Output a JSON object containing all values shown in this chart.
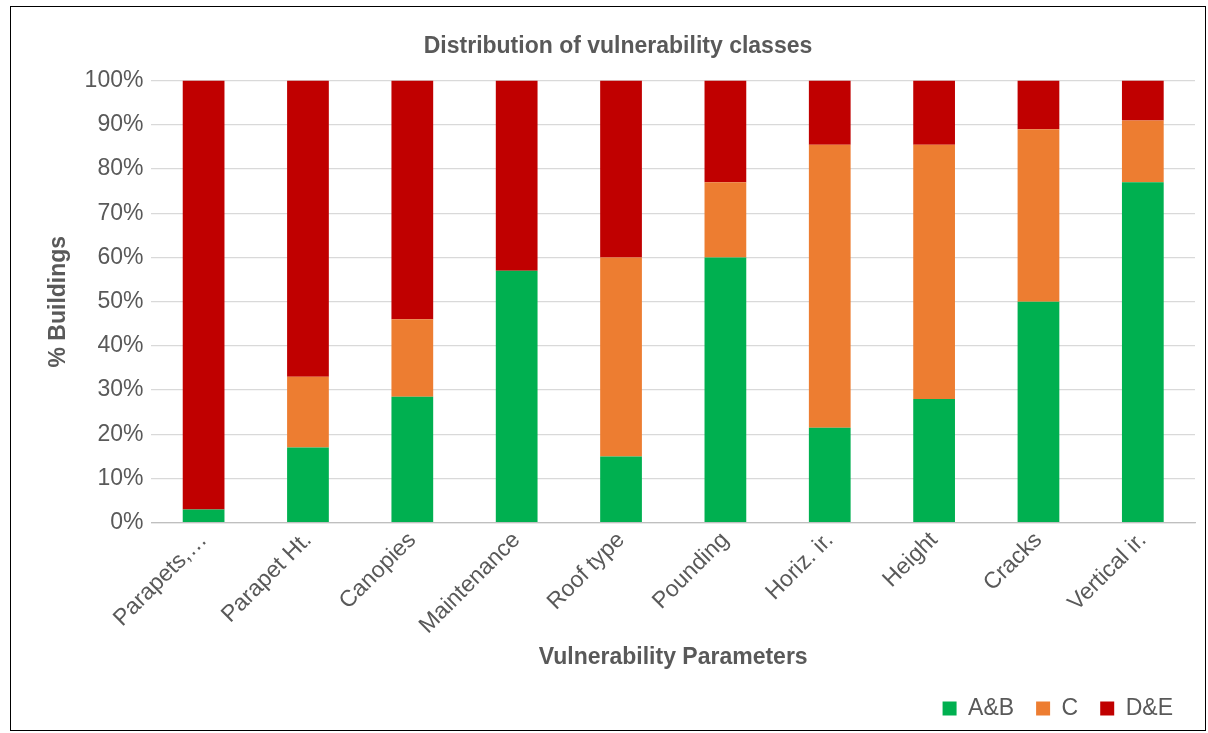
{
  "chart_data": {
    "type": "bar",
    "title": "Distribution of vulnerability classes",
    "xlabel": "Vulnerability Parameters",
    "ylabel": "% Buildings",
    "categories": [
      "Parapets,…",
      "Parapet Ht.",
      "Canopies",
      "Maintenance",
      "Roof type",
      "Pounding",
      "Horiz. ir.",
      "Height",
      "Cracks",
      "Vertical ir."
    ],
    "stacked": true,
    "series": [
      {
        "name": "A&B",
        "color": "#00b050",
        "values": [
          3,
          17,
          28.5,
          57,
          15,
          60,
          21.5,
          28,
          50,
          77
        ]
      },
      {
        "name": "C",
        "color": "#ed7d31",
        "values": [
          0,
          16,
          17.5,
          0,
          45,
          17,
          64,
          57.5,
          39,
          14
        ]
      },
      {
        "name": "D&E",
        "color": "#c00000",
        "values": [
          97,
          67,
          54,
          43,
          40,
          23,
          14.5,
          14.5,
          11,
          9
        ]
      }
    ],
    "ylim": [
      0,
      100
    ],
    "yticks": [
      {
        "value": 0,
        "label": "0%"
      },
      {
        "value": 10,
        "label": "10%"
      },
      {
        "value": 20,
        "label": "20%"
      },
      {
        "value": 30,
        "label": "30%"
      },
      {
        "value": 40,
        "label": "40%"
      },
      {
        "value": 50,
        "label": "50%"
      },
      {
        "value": 60,
        "label": "60%"
      },
      {
        "value": 70,
        "label": "70%"
      },
      {
        "value": 80,
        "label": "80%"
      },
      {
        "value": 90,
        "label": "90%"
      },
      {
        "value": 100,
        "label": "100%"
      }
    ],
    "grid": "y",
    "legend": "bottom right"
  }
}
